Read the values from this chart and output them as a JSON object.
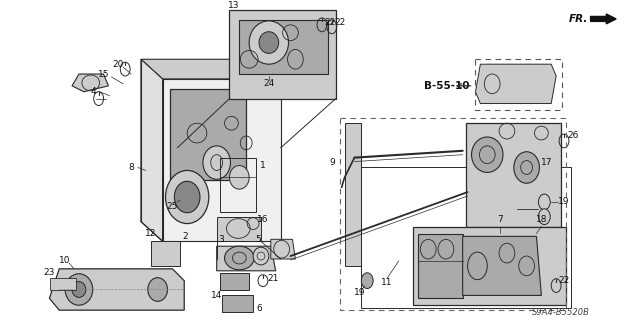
{
  "bg_color": "#ffffff",
  "line_color": "#2a2a2a",
  "gray_fill": "#aaaaaa",
  "light_gray": "#cccccc",
  "diagram_code": "S9A4-B5520B",
  "ref_label": "B-55-10",
  "fr_label": "FR."
}
